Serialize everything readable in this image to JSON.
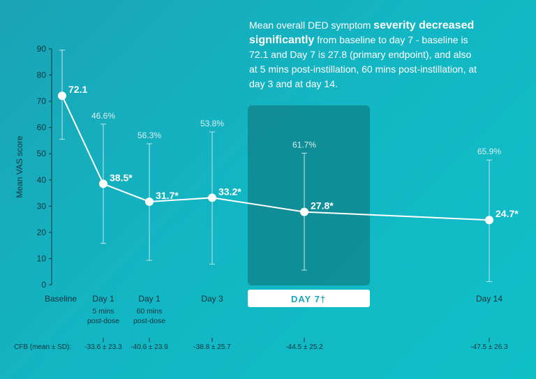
{
  "headline": {
    "part1": "Mean overall DED symptom ",
    "bold": "severity decreased significantly",
    "part2": " from baseline to day 7 - baseline is 72.1 and Day 7 is 27.8 (primary endpoint), and also at 5 mins post-instillation, 60 mins post-instillation, at day 3 and at day 14."
  },
  "highlight": {
    "label": "DAY 7†",
    "color": "#0e6e73"
  },
  "chart_data": {
    "type": "line",
    "ylabel": "Mean VAS score",
    "ylim": [
      0,
      90
    ],
    "yticks": [
      0,
      10,
      20,
      30,
      40,
      50,
      60,
      70,
      80,
      90
    ],
    "points": [
      {
        "x": "Baseline",
        "sub": [
          "",
          ""
        ],
        "value": 72.1,
        "label": "72.1",
        "err_low": 55.5,
        "err_high": 89.5,
        "pct": "",
        "cfb": ""
      },
      {
        "x": "Day 1",
        "sub": [
          "5 mins",
          "post-dose"
        ],
        "value": 38.5,
        "label": "38.5*",
        "err_low": 15.8,
        "err_high": 61.3,
        "pct": "46.6%",
        "cfb": "-33.6 ± 23.3"
      },
      {
        "x": "Day 1",
        "sub": [
          "60 mins",
          "post-dose"
        ],
        "value": 31.7,
        "label": "31.7*",
        "err_low": 9.3,
        "err_high": 53.8,
        "pct": "56.3%",
        "cfb": "-40.6 ± 23.9"
      },
      {
        "x": "Day 3",
        "sub": [
          "",
          ""
        ],
        "value": 33.2,
        "label": "33.2*",
        "err_low": 7.9,
        "err_high": 58.3,
        "pct": "53.8%",
        "cfb": "-38.8 ± 25.7"
      },
      {
        "x": "",
        "sub": [
          "",
          ""
        ],
        "value": 27.8,
        "label": "27.8*",
        "err_low": 5.6,
        "err_high": 50.2,
        "pct": "61.7%",
        "cfb": "-44.5 ± 25.2"
      },
      {
        "x": "Day 14",
        "sub": [
          "",
          ""
        ],
        "value": 24.7,
        "label": "24.7*",
        "err_low": 1.2,
        "err_high": 47.6,
        "pct": "65.9%",
        "cfb": "-47.5 ± 26.3"
      }
    ],
    "cfb_label": "CFB (mean ± SD):",
    "colors": {
      "line": "#ffffff",
      "axis": "#10333a",
      "text": "#10333a"
    }
  }
}
